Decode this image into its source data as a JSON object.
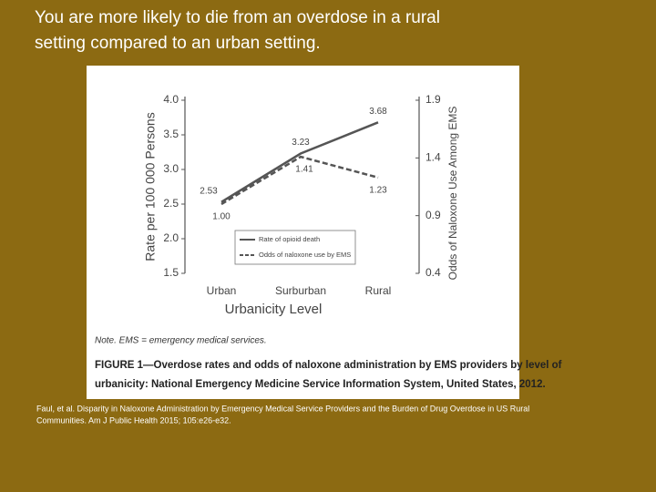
{
  "heading": [
    "You are more likely to die from an overdose in a rural",
    "setting compared to an urban setting."
  ],
  "citation": [
    "Faul, et al. Disparity in Naloxone Administration by Emergency Medical Service Providers and the Burden of Drug Overdose in US Rural",
    "Communities. Am J Public Health 2015; 105:e26-e32."
  ],
  "chart_data": {
    "type": "line",
    "categories": [
      "Urban",
      "Surburban",
      "Rural"
    ],
    "series": [
      {
        "name": "Rate of opioid death",
        "color": "#555555",
        "dashed": false,
        "values": [
          2.53,
          3.23,
          3.68
        ],
        "value_labels": [
          "2.53",
          "3.23",
          "3.68"
        ]
      },
      {
        "name": "Odds of naloxone use by EMS",
        "color": "#555555",
        "dashed": true,
        "axis": "y2",
        "values": [
          1.0,
          1.41,
          1.23
        ],
        "value_labels": [
          "1.00",
          "1.41",
          "1.23"
        ]
      }
    ],
    "ylim": [
      1.5,
      4.0
    ],
    "yticks": [
      1.5,
      {
        "value": 2,
        "label": "2.0"
      },
      2.5,
      {
        "value": 3,
        "label": "3.0"
      },
      3.5,
      {
        "value": 4,
        "label": "4.0"
      }
    ],
    "y2lim": [
      0.4,
      1.9
    ],
    "y2ticks": [
      0.4,
      0.9,
      1.4,
      1.9
    ],
    "ylabel": "Rate per 100 000 Persons",
    "y2label": "Odds of Naloxone Use Among EMS",
    "xlabel": "Urbanicity Level",
    "note": "Note. EMS = emergency medical services.",
    "caption": [
      "FIGURE 1—Overdose rates and odds of naloxone administration by EMS providers by level of",
      "urbanicity: National Emergency Medicine Service Information System, United States, 2012."
    ]
  }
}
